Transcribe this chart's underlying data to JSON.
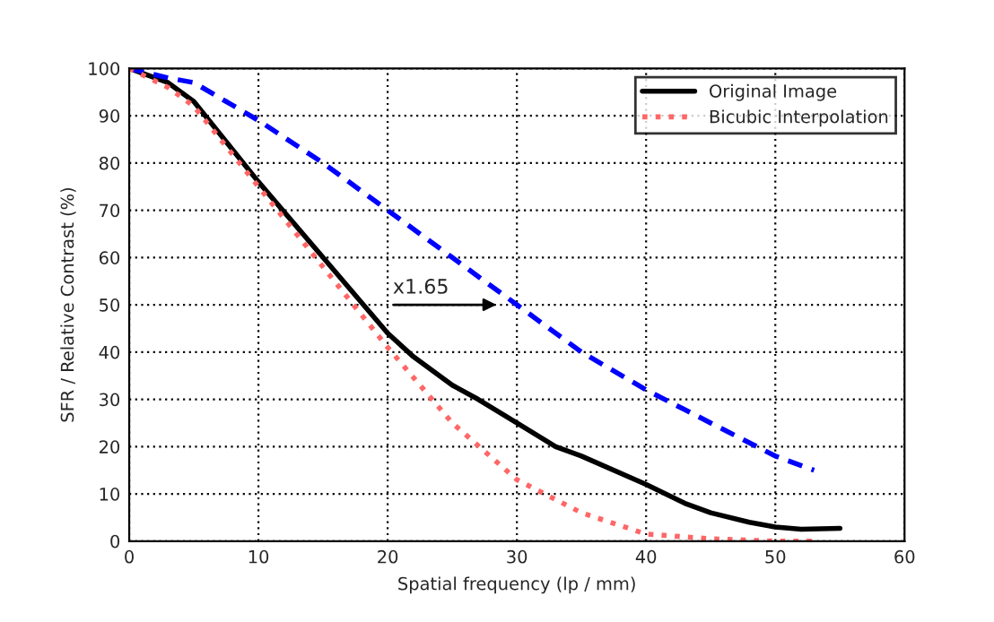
{
  "chart_data": {
    "type": "line",
    "xlabel": "Spatial frequency (lp / mm)",
    "ylabel": "SFR / Relative Contrast (%)",
    "xlim": [
      0,
      60
    ],
    "ylim": [
      0,
      100
    ],
    "xticks": [
      0,
      10,
      20,
      30,
      40,
      50,
      60
    ],
    "yticks": [
      0,
      10,
      20,
      30,
      40,
      50,
      60,
      70,
      80,
      90,
      100
    ],
    "grid": true,
    "legend": "top right",
    "marker": "none",
    "annotations": [
      "x1.65"
    ],
    "series": [
      {
        "name": "Original Image",
        "color": "#000000",
        "line_style": "solid",
        "x": [
          0,
          3,
          5,
          10,
          15,
          20,
          22,
          25,
          27,
          30,
          33,
          35,
          40,
          43,
          45,
          48,
          50,
          52,
          55
        ],
        "values": [
          100,
          97,
          93,
          76,
          60,
          44,
          39,
          33,
          30,
          25,
          20,
          18,
          12,
          8,
          6,
          4,
          3,
          2.5,
          2.7
        ]
      },
      {
        "color": "#0000ff",
        "line_style": "dashed",
        "x": [
          0,
          3,
          5,
          10,
          15,
          20,
          25,
          30,
          35,
          40,
          45,
          50,
          53
        ],
        "values": [
          100,
          98,
          97,
          89,
          80,
          70,
          60,
          50,
          40,
          32,
          25,
          18,
          15
        ]
      },
      {
        "name": "Bicubic Interpolation",
        "color": "#ff6666",
        "line_style": "dotted",
        "x": [
          0,
          3,
          5,
          10,
          15,
          20,
          25,
          30,
          35,
          40,
          45,
          50,
          53
        ],
        "values": [
          100,
          96,
          92,
          75,
          58,
          41,
          25,
          13,
          6,
          1.5,
          0.5,
          0,
          0
        ]
      }
    ]
  }
}
